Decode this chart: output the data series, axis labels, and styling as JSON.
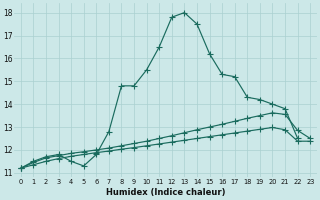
{
  "xlabel": "Humidex (Indice chaleur)",
  "xlim": [
    -0.5,
    23.5
  ],
  "ylim": [
    10.8,
    18.4
  ],
  "xticks": [
    0,
    1,
    2,
    3,
    4,
    5,
    6,
    7,
    8,
    9,
    10,
    11,
    12,
    13,
    14,
    15,
    16,
    17,
    18,
    19,
    20,
    21,
    22,
    23
  ],
  "yticks": [
    11,
    12,
    13,
    14,
    15,
    16,
    17,
    18
  ],
  "bg_color": "#cce8e8",
  "grid_color": "#aad0d0",
  "line_color": "#1a6b5e",
  "line1_x": [
    0,
    1,
    2,
    3,
    4,
    5,
    6,
    7,
    8,
    9,
    10,
    11,
    12,
    13,
    14,
    15,
    16,
    17,
    18,
    19,
    20,
    21,
    22
  ],
  "line1_y": [
    11.2,
    11.5,
    11.7,
    11.8,
    11.5,
    11.3,
    11.8,
    12.8,
    14.8,
    14.8,
    15.5,
    16.5,
    17.8,
    18.0,
    17.5,
    16.2,
    15.3,
    15.2,
    14.3,
    14.2,
    14.0,
    13.8,
    12.5
  ],
  "line2_x": [
    0,
    1,
    2,
    3,
    4,
    5,
    6,
    7,
    8,
    9,
    10,
    11,
    12,
    13,
    14,
    15,
    16,
    17,
    18,
    19,
    20,
    21,
    22,
    23
  ],
  "line2_y": [
    11.2,
    11.45,
    11.65,
    11.75,
    11.85,
    11.92,
    12.0,
    12.08,
    12.18,
    12.28,
    12.38,
    12.5,
    12.62,
    12.75,
    12.88,
    13.0,
    13.12,
    13.25,
    13.38,
    13.5,
    13.62,
    13.55,
    12.85,
    12.5
  ],
  "line3_x": [
    0,
    1,
    2,
    3,
    4,
    5,
    6,
    7,
    8,
    9,
    10,
    11,
    12,
    13,
    14,
    15,
    16,
    17,
    18,
    19,
    20,
    21,
    22,
    23
  ],
  "line3_y": [
    11.2,
    11.35,
    11.5,
    11.62,
    11.72,
    11.8,
    11.88,
    11.95,
    12.03,
    12.1,
    12.18,
    12.26,
    12.34,
    12.42,
    12.5,
    12.58,
    12.66,
    12.74,
    12.82,
    12.9,
    12.98,
    12.88,
    12.38,
    12.38
  ]
}
